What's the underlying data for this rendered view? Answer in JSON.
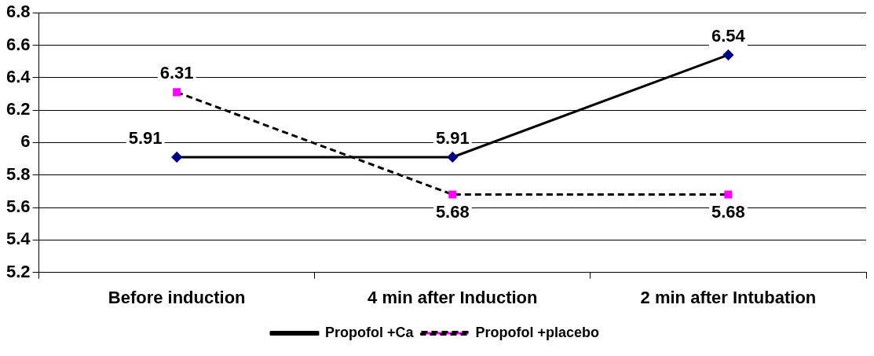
{
  "chart_data": {
    "type": "line",
    "categories": [
      "Before induction",
      "4 min after Induction",
      "2 min after Intubation"
    ],
    "series": [
      {
        "name": "Propofol +Ca",
        "color": "#000080",
        "values": [
          5.91,
          5.91,
          6.54
        ],
        "marker": "diamond",
        "line_style": "solid"
      },
      {
        "name": "Propofol +placebo",
        "color": "#ff00ff",
        "values": [
          6.31,
          5.68,
          5.68
        ],
        "marker": "square",
        "line_style": "dashed"
      }
    ],
    "ylim": [
      5.2,
      6.8
    ],
    "yticks": [
      5.2,
      5.4,
      5.6,
      5.8,
      6,
      6.2,
      6.4,
      6.6,
      6.8
    ],
    "grid": "y",
    "legend": "bottom",
    "data_labels": true
  }
}
